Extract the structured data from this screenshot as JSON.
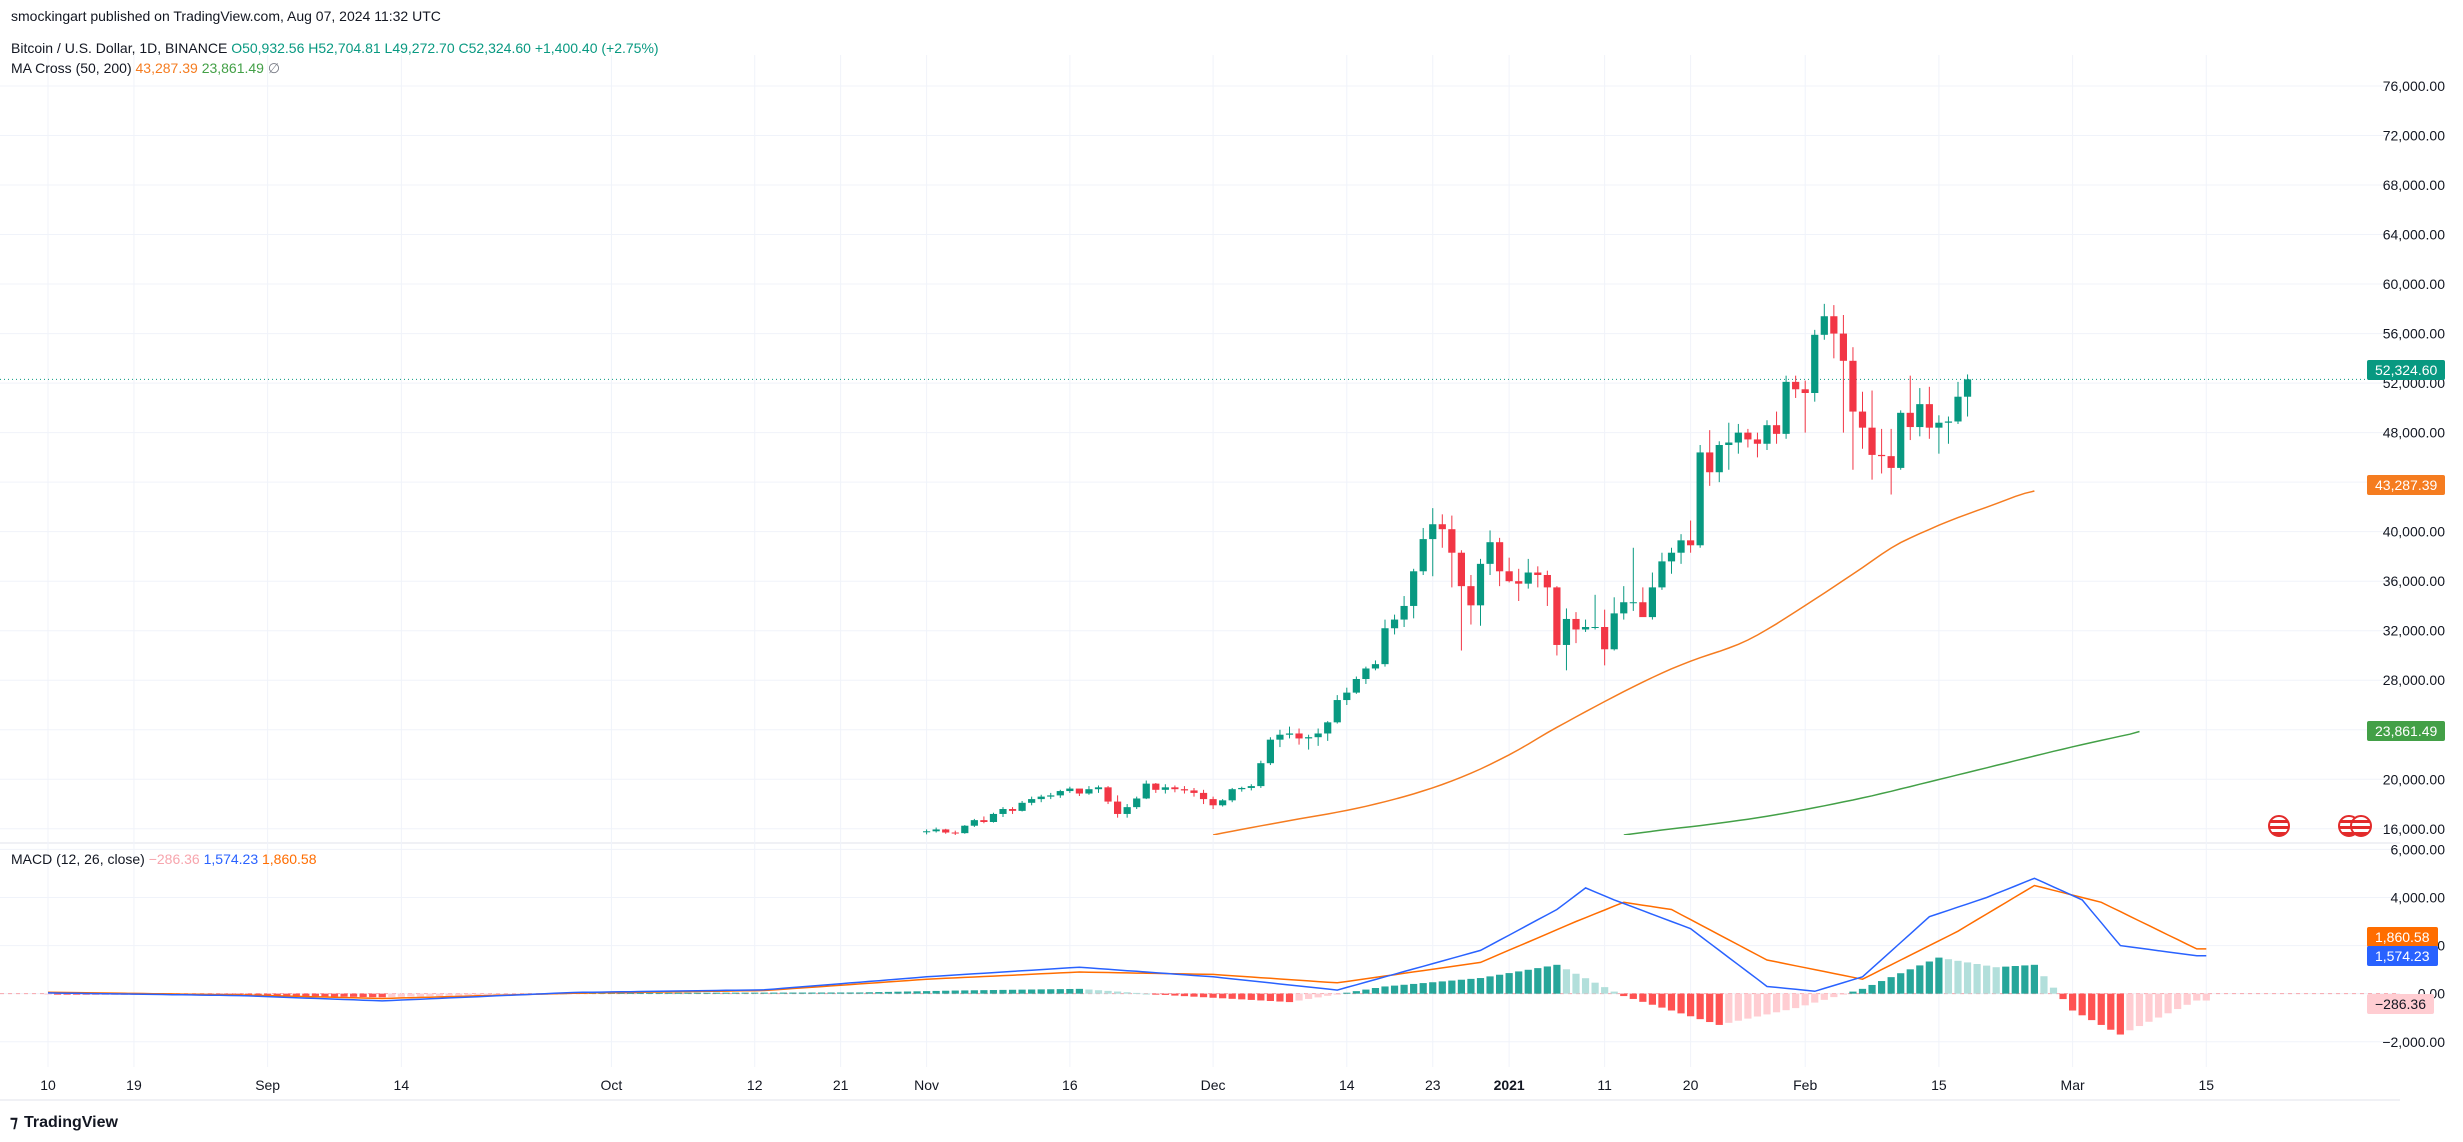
{
  "header": {
    "published": "smockingart published on TradingView.com, Aug 07, 2024 11:32 UTC",
    "symbol": "Bitcoin / U.S. Dollar, 1D, BINANCE",
    "open": "O50,932.56",
    "high": "H52,704.81",
    "low": "L49,272.70",
    "close": "C52,324.60",
    "change": "+1,400.40 (+2.75%)",
    "ma_label": "MA Cross (50, 200)",
    "ma_fast_value": "43,287.39",
    "ma_slow_value": "23,861.49",
    "ma_extra": "∅",
    "macd_label": "MACD (12, 26, close)",
    "macd_hist_value": "−286.36",
    "macd_value": "1,574.23",
    "signal_value": "1,860.58"
  },
  "badges": {
    "last_price": "52,324.60",
    "ma_fast": "43,287.39",
    "ma_slow": "23,861.49",
    "signal": "1,860.58",
    "macd": "1,574.23",
    "hist": "−286.36"
  },
  "colors": {
    "up": "#089981",
    "down": "#f23645",
    "ma_fast": "#f57c20",
    "ma_slow": "#43a047",
    "macd": "#2962ff",
    "signal": "#ff6d00",
    "hist_up_strong": "#26a69a",
    "hist_up_weak": "#b2dfdb",
    "hist_down_strong": "#ff5252",
    "hist_down_weak": "#ffcdd2"
  },
  "footer": {
    "brand": "TradingView"
  },
  "chart_data": [
    {
      "type": "candlestick",
      "title": "Bitcoin / U.S. Dollar, 1D, BINANCE",
      "y_ticks": [
        "16,000.00",
        "20,000.00",
        "24,000.00",
        "28,000.00",
        "32,000.00",
        "36,000.00",
        "40,000.00",
        "44,000.00",
        "48,000.00",
        "52,000.00",
        "56,000.00",
        "60,000.00",
        "64,000.00",
        "68,000.00",
        "72,000.00",
        "76,000.00"
      ],
      "ylim": [
        15500,
        78500
      ],
      "x_tick_labels": [
        "10",
        "19",
        "Sep",
        "14",
        "Oct",
        "12",
        "21",
        "Nov",
        "16",
        "Dec",
        "14",
        "23",
        "2021",
        "11",
        "20",
        "Feb",
        "15",
        "Mar",
        "15"
      ],
      "x_tick_index": [
        0,
        9,
        23,
        37,
        59,
        74,
        83,
        92,
        107,
        122,
        136,
        145,
        153,
        163,
        172,
        184,
        198,
        212,
        226
      ],
      "candle_start_index": 92,
      "candles": [
        [
          15750,
          15950,
          15550,
          15800
        ],
        [
          15800,
          16100,
          15700,
          15950
        ],
        [
          15950,
          16000,
          15600,
          15700
        ],
        [
          15700,
          15850,
          15500,
          15650
        ],
        [
          15650,
          16300,
          15600,
          16250
        ],
        [
          16250,
          16800,
          16150,
          16700
        ],
        [
          16700,
          17000,
          16450,
          16550
        ],
        [
          16550,
          17300,
          16500,
          17200
        ],
        [
          17200,
          17750,
          16950,
          17600
        ],
        [
          17600,
          17750,
          17200,
          17450
        ],
        [
          17450,
          18250,
          17400,
          18100
        ],
        [
          18100,
          18600,
          17900,
          18400
        ],
        [
          18400,
          18750,
          18150,
          18600
        ],
        [
          18600,
          18900,
          18400,
          18700
        ],
        [
          18700,
          19150,
          18500,
          19050
        ],
        [
          19050,
          19400,
          18900,
          19250
        ],
        [
          19250,
          19200,
          18650,
          18850
        ],
        [
          18850,
          19450,
          18750,
          19200
        ],
        [
          19200,
          19500,
          18900,
          19350
        ],
        [
          19350,
          19450,
          18000,
          18200
        ],
        [
          18200,
          18700,
          16900,
          17200
        ],
        [
          17200,
          18000,
          16900,
          17750
        ],
        [
          17750,
          18600,
          17600,
          18450
        ],
        [
          18450,
          19900,
          18400,
          19650
        ],
        [
          19650,
          19700,
          18900,
          19150
        ],
        [
          19150,
          19600,
          18850,
          19350
        ],
        [
          19350,
          19500,
          18950,
          19200
        ],
        [
          19200,
          19450,
          18850,
          19100
        ],
        [
          19100,
          19300,
          18600,
          18900
        ],
        [
          18900,
          19150,
          18000,
          18400
        ],
        [
          18400,
          18600,
          17600,
          17900
        ],
        [
          17900,
          18400,
          17800,
          18300
        ],
        [
          18300,
          19300,
          18150,
          19200
        ],
        [
          19200,
          19400,
          19000,
          19300
        ],
        [
          19300,
          19600,
          19100,
          19450
        ],
        [
          19450,
          21500,
          19300,
          21300
        ],
        [
          21300,
          23400,
          21150,
          23200
        ],
        [
          23200,
          24000,
          22600,
          23600
        ],
        [
          23600,
          24250,
          23300,
          23700
        ],
        [
          23700,
          24100,
          22800,
          23300
        ],
        [
          23300,
          23600,
          22400,
          23400
        ],
        [
          23400,
          24100,
          22700,
          23700
        ],
        [
          23700,
          24700,
          23100,
          24600
        ],
        [
          24600,
          26800,
          24500,
          26400
        ],
        [
          26400,
          27400,
          26000,
          27000
        ],
        [
          27000,
          28300,
          26900,
          28100
        ],
        [
          28100,
          29100,
          27700,
          28950
        ],
        [
          28950,
          29600,
          28800,
          29300
        ],
        [
          29300,
          32900,
          29100,
          32200
        ],
        [
          32200,
          33300,
          31700,
          32900
        ],
        [
          32900,
          34800,
          32300,
          34000
        ],
        [
          34000,
          37000,
          33000,
          36800
        ],
        [
          36800,
          40300,
          36500,
          39400
        ],
        [
          39400,
          41900,
          36400,
          40600
        ],
        [
          40600,
          41400,
          38700,
          40200
        ],
        [
          40200,
          41300,
          35500,
          38300
        ],
        [
          38300,
          38500,
          30400,
          35600
        ],
        [
          35600,
          36500,
          32500,
          34050
        ],
        [
          34050,
          37800,
          32400,
          37400
        ],
        [
          37400,
          40100,
          36500,
          39150
        ],
        [
          39150,
          39500,
          35600,
          36800
        ],
        [
          36800,
          37900,
          35900,
          36000
        ],
        [
          36000,
          37000,
          34400,
          35800
        ],
        [
          35800,
          37800,
          35400,
          36700
        ],
        [
          36700,
          37200,
          35500,
          36500
        ],
        [
          36500,
          36850,
          34000,
          35500
        ],
        [
          35500,
          35600,
          30000,
          30850
        ],
        [
          30850,
          33800,
          28800,
          32950
        ],
        [
          32950,
          33500,
          31000,
          32100
        ],
        [
          32100,
          32900,
          31900,
          32300
        ],
        [
          32300,
          34900,
          32100,
          32300
        ],
        [
          32300,
          33700,
          29200,
          30500
        ],
        [
          30500,
          34700,
          30400,
          33400
        ],
        [
          33400,
          35600,
          32900,
          34300
        ],
        [
          34300,
          38700,
          33600,
          34300
        ],
        [
          34300,
          35500,
          33200,
          33100
        ],
        [
          33100,
          36700,
          32900,
          35500
        ],
        [
          35500,
          38300,
          35300,
          37600
        ],
        [
          37600,
          38700,
          36600,
          38300
        ],
        [
          38300,
          39800,
          37400,
          39300
        ],
        [
          39300,
          40900,
          38300,
          38900
        ],
        [
          38900,
          47000,
          38700,
          46400
        ],
        [
          46400,
          48200,
          43700,
          44800
        ],
        [
          44800,
          47300,
          44000,
          47000
        ],
        [
          47000,
          48800,
          45000,
          47200
        ],
        [
          47200,
          48700,
          46300,
          48000
        ],
        [
          48000,
          48300,
          46800,
          47450
        ],
        [
          47450,
          48000,
          46000,
          47100
        ],
        [
          47100,
          49000,
          46600,
          48600
        ],
        [
          48600,
          49700,
          47100,
          47900
        ],
        [
          47900,
          52600,
          47500,
          52100
        ],
        [
          52100,
          52600,
          50800,
          51500
        ],
        [
          51500,
          52200,
          48000,
          51200
        ],
        [
          51200,
          56300,
          50500,
          55900
        ],
        [
          55900,
          58400,
          55500,
          57400
        ],
        [
          57400,
          58300,
          54000,
          56000
        ],
        [
          56000,
          57500,
          48000,
          53800
        ],
        [
          53800,
          54900,
          45000,
          49700
        ],
        [
          49700,
          51300,
          46700,
          48400
        ],
        [
          48400,
          51400,
          44200,
          46200
        ],
        [
          46200,
          48300,
          44700,
          46100
        ],
        [
          46100,
          48300,
          43000,
          45150
        ],
        [
          45150,
          49800,
          45000,
          49600
        ],
        [
          49600,
          52600,
          47400,
          48450
        ],
        [
          48450,
          51600,
          47700,
          50300
        ],
        [
          50300,
          51700,
          47500,
          48400
        ],
        [
          48400,
          49400,
          46300,
          48800
        ],
        [
          48800,
          49300,
          47100,
          48900
        ],
        [
          48900,
          52100,
          48700,
          50900
        ],
        [
          50900,
          52700,
          49300,
          52300
        ]
      ],
      "series": [
        {
          "name": "MA 50",
          "color": "#f57c20",
          "start_index": 122,
          "values": [
            15500,
            15660,
            15800,
            15950,
            16100,
            16240,
            16380,
            16520,
            16660,
            16800,
            16930,
            17070,
            17200,
            17340,
            17490,
            17650,
            17820,
            18000,
            18190,
            18390,
            18600,
            18820,
            19060,
            19310,
            19580,
            19870,
            20170,
            20490,
            20830,
            21200,
            21580,
            21980,
            22400,
            22840,
            23300,
            23760,
            24200,
            24620,
            25040,
            25460,
            25870,
            26280,
            26680,
            27080,
            27470,
            27850,
            28220,
            28580,
            28920,
            29240,
            29540,
            29820,
            30080,
            30330,
            30600,
            30900,
            31250,
            31650,
            32100,
            32560,
            33040,
            33540,
            34040,
            34540,
            35040,
            35550,
            36060,
            36580,
            37100,
            37640,
            38180,
            38680,
            39120,
            39500,
            39840,
            40180,
            40520,
            40840,
            41140,
            41420,
            41700,
            41980,
            42260,
            42550,
            42850,
            43100,
            43287
          ]
        },
        {
          "name": "MA 200",
          "color": "#43a047",
          "start_index": 165,
          "values": [
            15500,
            15600,
            15700,
            15800,
            15900,
            15990,
            16080,
            16170,
            16260,
            16360,
            16460,
            16560,
            16670,
            16780,
            16900,
            17020,
            17150,
            17280,
            17420,
            17560,
            17710,
            17860,
            18010,
            18170,
            18330,
            18500,
            18670,
            18850,
            19030,
            19220,
            19410,
            19600,
            19790,
            19980,
            20170,
            20360,
            20550,
            20740,
            20930,
            21120,
            21310,
            21500,
            21690,
            21880,
            22070,
            22260,
            22440,
            22620,
            22800,
            22970,
            23140,
            23310,
            23480,
            23640,
            23861
          ]
        }
      ]
    },
    {
      "type": "macd",
      "title": "MACD (12, 26, close)",
      "y_ticks": [
        "−2,000.00",
        "0.00",
        "2,000.00",
        "4,000.00",
        "6,000.00"
      ],
      "ylim": [
        -3050,
        6100
      ],
      "macd_values": [
        {
          "index": 0,
          "value": 30
        },
        {
          "index": 20,
          "value": -80
        },
        {
          "index": 35,
          "value": -300
        },
        {
          "index": 55,
          "value": 50
        },
        {
          "index": 75,
          "value": 160
        },
        {
          "index": 92,
          "value": 700
        },
        {
          "index": 108,
          "value": 1100
        },
        {
          "index": 122,
          "value": 700
        },
        {
          "index": 135,
          "value": 150
        },
        {
          "index": 150,
          "value": 1800
        },
        {
          "index": 158,
          "value": 3500
        },
        {
          "index": 161,
          "value": 4400
        },
        {
          "index": 164,
          "value": 3900
        },
        {
          "index": 172,
          "value": 2700
        },
        {
          "index": 180,
          "value": 300
        },
        {
          "index": 185,
          "value": 100
        },
        {
          "index": 190,
          "value": 700
        },
        {
          "index": 197,
          "value": 3200
        },
        {
          "index": 203,
          "value": 4000
        },
        {
          "index": 208,
          "value": 4800
        },
        {
          "index": 213,
          "value": 3900
        },
        {
          "index": 217,
          "value": 2000
        },
        {
          "index": 225,
          "value": 1574
        }
      ],
      "signal_values": [
        {
          "index": 0,
          "value": 60
        },
        {
          "index": 20,
          "value": -50
        },
        {
          "index": 35,
          "value": -200
        },
        {
          "index": 55,
          "value": 20
        },
        {
          "index": 75,
          "value": 130
        },
        {
          "index": 92,
          "value": 600
        },
        {
          "index": 108,
          "value": 900
        },
        {
          "index": 122,
          "value": 800
        },
        {
          "index": 135,
          "value": 450
        },
        {
          "index": 150,
          "value": 1300
        },
        {
          "index": 160,
          "value": 3000
        },
        {
          "index": 165,
          "value": 3800
        },
        {
          "index": 170,
          "value": 3500
        },
        {
          "index": 180,
          "value": 1400
        },
        {
          "index": 190,
          "value": 600
        },
        {
          "index": 200,
          "value": 2600
        },
        {
          "index": 208,
          "value": 4500
        },
        {
          "index": 215,
          "value": 3800
        },
        {
          "index": 225,
          "value": 1860
        }
      ],
      "histogram": [
        {
          "index": 0,
          "value": -20
        },
        {
          "index": 20,
          "value": -60
        },
        {
          "index": 35,
          "value": -150
        },
        {
          "index": 55,
          "value": 30
        },
        {
          "index": 85,
          "value": 50
        },
        {
          "index": 95,
          "value": 130
        },
        {
          "index": 108,
          "value": 200
        },
        {
          "index": 118,
          "value": -80
        },
        {
          "index": 130,
          "value": -350
        },
        {
          "index": 140,
          "value": 300
        },
        {
          "index": 150,
          "value": 650
        },
        {
          "index": 158,
          "value": 1200
        },
        {
          "index": 165,
          "value": -100
        },
        {
          "index": 175,
          "value": -1300
        },
        {
          "index": 183,
          "value": -600
        },
        {
          "index": 190,
          "value": 200
        },
        {
          "index": 198,
          "value": 1500
        },
        {
          "index": 204,
          "value": 1100
        },
        {
          "index": 208,
          "value": 1200
        },
        {
          "index": 212,
          "value": -700
        },
        {
          "index": 217,
          "value": -1700
        },
        {
          "index": 225,
          "value": -286
        }
      ]
    }
  ]
}
